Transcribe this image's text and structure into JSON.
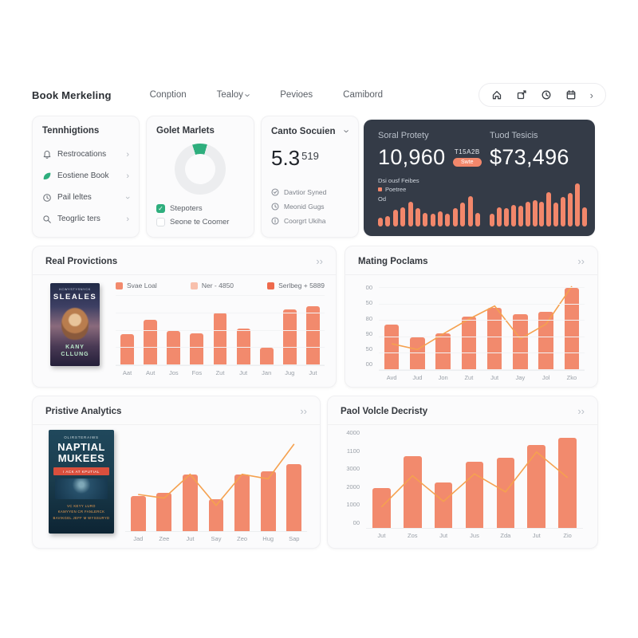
{
  "nav": {
    "brand": "Book Merkeling",
    "items": [
      "Conption",
      "Tealoy",
      "Pevioes",
      "Camibord"
    ]
  },
  "glyphs": {
    "chevron_right": "›",
    "check": "✓"
  },
  "sidebar": {
    "title": "Tennhigtions",
    "items": [
      {
        "label": "Restrocations"
      },
      {
        "label": "Eostiene Book"
      },
      {
        "label": "Pail leltes"
      },
      {
        "label": "Teogrlic ters"
      }
    ]
  },
  "market_card": {
    "title": "Golet Marlets",
    "options": [
      {
        "label": "Stepoters",
        "checked": true
      },
      {
        "label": "Seone te Coomer",
        "checked": false
      }
    ]
  },
  "score_card": {
    "title": "Canto Socuien",
    "value_main": "5.3",
    "value_sub": "519",
    "items": [
      {
        "label": "Davtior Syned"
      },
      {
        "label": "Meonid Gugs"
      },
      {
        "label": "Coorgrt Ukiha"
      }
    ]
  },
  "stats_card": {
    "left_label": "Soral Protety",
    "left_value": "10,960",
    "left_sub": "T15A2B",
    "left_badge": "Swte",
    "right_label": "Tuod Tesicis",
    "right_value": "$73,496",
    "footnote": "Dsi ousf Feibes",
    "legend_label": "Poetree",
    "legend_sub": "Od"
  },
  "panels": {
    "real": {
      "title": "Real Provictions",
      "expand": "››",
      "legend": [
        {
          "label": "Svae Loal",
          "color": "#F28A6D"
        },
        {
          "label": "Ner - 4850",
          "color": "#F8C0AC"
        },
        {
          "label": "Serlbeg + 5889",
          "color": "#EE6A4C"
        }
      ]
    },
    "mating": {
      "title": "Mating Poclams",
      "expand": "››"
    },
    "pristive": {
      "title": "Pristive Analytics",
      "expand": "››"
    },
    "pool": {
      "title": "Paol Volcle Decristy",
      "expand": "››"
    }
  },
  "books": {
    "book1": {
      "top_text": "KCWYSTYSNYCK",
      "title": "SLEALES",
      "author_line1": "KANY",
      "author_line2": "CLLUNG"
    },
    "book2": {
      "top_text": "OLIRSTERAIWS",
      "title_line1": "NAPTIAL",
      "title_line2": "MUKEES",
      "ribbon": "I ACK AT KPUTIAL",
      "footer_line1": "VC KEYY LURO",
      "footer_line2": "KAMYYEN CR FANLERCK",
      "footer_line3": "BAVIKGEL JEFF M WYSSURYD"
    }
  },
  "colors": {
    "bar": "#F28A6D",
    "bar_light": "#F8C0AC",
    "bar_dark": "#EE6A4C",
    "line": "#F5A14F",
    "green_accent": "#2EAE7D",
    "dark_card_bg": "#343B47"
  },
  "chart_data": [
    {
      "name": "market_share",
      "type": "pie",
      "title": "Golet Marlets",
      "legend_position": "bottom",
      "slices": [
        {
          "label": "Stepoters",
          "value": 9,
          "color": "#2EAE7D"
        },
        {
          "label": "Seone te Coomer",
          "value": 91,
          "color": "#ECEDEF"
        }
      ]
    },
    {
      "name": "social_mini_left",
      "type": "bar",
      "title": "Soral Protety mini bars",
      "values": [
        25,
        28,
        45,
        52,
        68,
        50,
        38,
        35,
        42,
        35,
        50,
        65,
        82,
        38
      ],
      "bar_color": "#F2876B",
      "ylim": [
        0,
        100
      ]
    },
    {
      "name": "social_mini_right",
      "type": "bar",
      "title": "Tuod Tesicis mini bars",
      "values": [
        30,
        45,
        42,
        50,
        48,
        58,
        62,
        58,
        80,
        55,
        68,
        78,
        100,
        45
      ],
      "bar_color": "#F2876B",
      "ylim": [
        0,
        100
      ]
    },
    {
      "name": "real_projections",
      "type": "bar",
      "title": "Real Provictions",
      "categories": [
        "Aat",
        "Aut",
        "Jos",
        "Fos",
        "Zut",
        "Jut",
        "Jan",
        "Jug",
        "Jut"
      ],
      "values": [
        45,
        66,
        50,
        46,
        76,
        53,
        25,
        80,
        85
      ],
      "legend": [
        "Svae Loal",
        "Ner - 4850",
        "Serlbeg + 5889"
      ],
      "legend_position": "top",
      "grid": true,
      "bar_color": "#F28A6D",
      "ylim": [
        0,
        100
      ]
    },
    {
      "name": "mating_podiums",
      "type": "bar",
      "title": "Mating Poclams",
      "categories": [
        "Avd",
        "Jud",
        "Jon",
        "Zut",
        "Jut",
        "Jay",
        "Jol",
        "Zko"
      ],
      "values": [
        55,
        40,
        45,
        65,
        76,
        68,
        71,
        100
      ],
      "line": [
        32,
        25,
        44,
        62,
        78,
        38,
        56,
        102
      ],
      "ylabels": [
        "00",
        "50",
        "80",
        "90",
        "50",
        "00"
      ],
      "grid": true,
      "bar_color": "#F28A6D",
      "line_color": "#F5A14F",
      "ylim": [
        0,
        100
      ]
    },
    {
      "name": "pristive_analytics",
      "type": "bar",
      "title": "Pristive Analytics",
      "categories": [
        "Jad",
        "Zee",
        "Jut",
        "Say",
        "Zeo",
        "Hug",
        "Sap"
      ],
      "values": [
        38,
        42,
        62,
        35,
        62,
        65,
        73
      ],
      "line": [
        40,
        36,
        62,
        28,
        62,
        57,
        95
      ],
      "grid": false,
      "bar_color": "#F28A6D",
      "line_color": "#F5A14F",
      "ylim": [
        0,
        100
      ]
    },
    {
      "name": "pool_density",
      "type": "bar",
      "title": "Paol Volcle Decristy",
      "categories": [
        "Jut",
        "Zos",
        "Jut",
        "Jus",
        "Zda",
        "Jut",
        "Zio"
      ],
      "values": [
        42,
        76,
        48,
        70,
        74,
        87,
        95
      ],
      "line": [
        22,
        55,
        28,
        57,
        38,
        80,
        53
      ],
      "ylabels": [
        "4000",
        "1100",
        "3000",
        "2000",
        "1000",
        "00"
      ],
      "grid": false,
      "bar_color": "#F28A6D",
      "line_color": "#F5A14F",
      "ylim": [
        0,
        100
      ]
    }
  ]
}
